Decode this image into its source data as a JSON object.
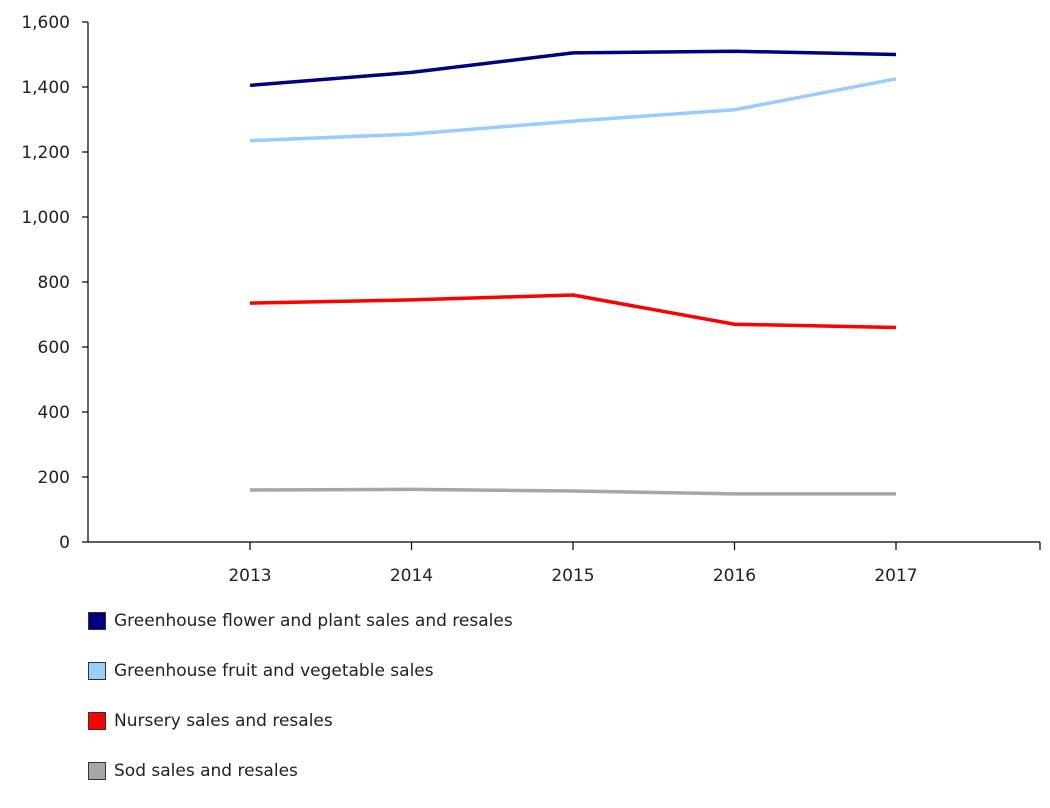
{
  "chart_data": {
    "type": "line",
    "title": "",
    "xlabel": "",
    "ylabel": "",
    "x": [
      "2013",
      "2014",
      "2015",
      "2016",
      "2017"
    ],
    "ylim": [
      0,
      1600
    ],
    "yticks": [
      0,
      200,
      400,
      600,
      800,
      1000,
      1200,
      1400,
      1600
    ],
    "ytick_labels": [
      "0",
      "200",
      "400",
      "600",
      "800",
      "1,000",
      "1,200",
      "1,400",
      "1,600"
    ],
    "grid": false,
    "legend_position": "bottom",
    "series": [
      {
        "name": "Greenhouse flower and plant sales and resales",
        "color": "#000080",
        "values": [
          1405,
          1445,
          1505,
          1510,
          1500
        ]
      },
      {
        "name": "Greenhouse fruit and vegetable sales",
        "color": "#99ccff",
        "values": [
          1235,
          1255,
          1295,
          1330,
          1425
        ]
      },
      {
        "name": "Nursery sales and resales",
        "color": "#ff0000",
        "values": [
          735,
          745,
          760,
          670,
          660
        ]
      },
      {
        "name": "Sod sales and resales",
        "color": "#a6a6a6",
        "values": [
          160,
          162,
          157,
          148,
          148
        ]
      }
    ]
  }
}
